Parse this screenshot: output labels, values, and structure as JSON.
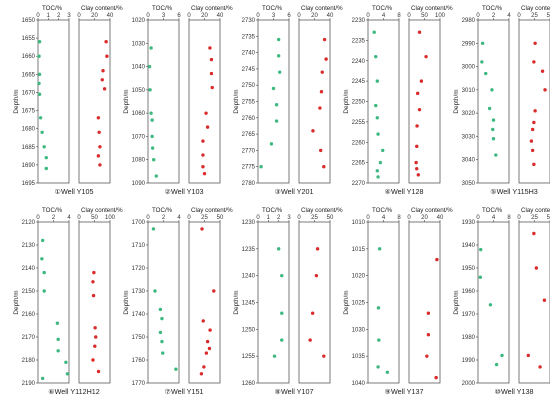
{
  "chart_data": [
    {
      "type": "scatter",
      "caption": "①Well Y105",
      "ylabel": "Depth/m",
      "ylim": [
        1650,
        1695
      ],
      "yticks": [
        1650,
        1655,
        1660,
        1665,
        1670,
        1675,
        1680,
        1685,
        1690,
        1695
      ],
      "reverse_y": true,
      "toc": {
        "label": "TOC/%",
        "xlim": [
          0,
          3
        ],
        "xticks": [
          0,
          1,
          2,
          3
        ],
        "points": [
          [
            0.15,
            1656
          ],
          [
            0.1,
            1660
          ],
          [
            0.15,
            1665
          ],
          [
            0.1,
            1667.5
          ],
          [
            0.15,
            1670.5
          ],
          [
            0.25,
            1677
          ],
          [
            0.4,
            1681
          ],
          [
            0.6,
            1685
          ],
          [
            0.8,
            1688
          ],
          [
            0.8,
            1691
          ]
        ]
      },
      "clay": {
        "label": "Clay content/%",
        "xlim": [
          0,
          40
        ],
        "xticks": [
          0,
          20,
          40
        ],
        "points": [
          [
            35,
            1656
          ],
          [
            36,
            1660
          ],
          [
            31,
            1664
          ],
          [
            30,
            1666.5
          ],
          [
            33,
            1669
          ],
          [
            25,
            1677
          ],
          [
            26,
            1681
          ],
          [
            27,
            1685
          ],
          [
            25,
            1687.5
          ],
          [
            27,
            1690
          ]
        ]
      }
    },
    {
      "type": "scatter",
      "caption": "②Well Y103",
      "ylabel": "Depth/m",
      "ylim": [
        1020,
        1090
      ],
      "yticks": [
        1020,
        1030,
        1040,
        1050,
        1060,
        1070,
        1080,
        1090
      ],
      "reverse_y": true,
      "toc": {
        "label": "TOC/%",
        "xlim": [
          0,
          6
        ],
        "xticks": [
          0,
          3,
          6
        ],
        "points": [
          [
            0.6,
            1032
          ],
          [
            0.3,
            1040
          ],
          [
            0.4,
            1050
          ],
          [
            0.6,
            1060
          ],
          [
            0.8,
            1063
          ],
          [
            0.8,
            1070
          ],
          [
            0.9,
            1075
          ],
          [
            1.1,
            1080
          ],
          [
            1.6,
            1087
          ]
        ]
      },
      "clay": {
        "label": "Clay content/%",
        "xlim": [
          0,
          40
        ],
        "xticks": [
          0,
          20,
          40
        ],
        "points": [
          [
            27,
            1032
          ],
          [
            29,
            1037
          ],
          [
            29,
            1043
          ],
          [
            30,
            1049
          ],
          [
            22,
            1060
          ],
          [
            24,
            1066
          ],
          [
            18,
            1072
          ],
          [
            18,
            1078
          ],
          [
            18,
            1083
          ],
          [
            20,
            1086
          ]
        ]
      }
    },
    {
      "type": "scatter",
      "caption": "③Well Y201",
      "ylabel": "Depth/m",
      "ylim": [
        2730,
        2780
      ],
      "yticks": [
        2730,
        2735,
        2740,
        2745,
        2750,
        2755,
        2760,
        2765,
        2770,
        2775,
        2780
      ],
      "reverse_y": true,
      "toc": {
        "label": "TOC/%",
        "xlim": [
          0,
          6
        ],
        "xticks": [
          0,
          3,
          6
        ],
        "points": [
          [
            4,
            2736
          ],
          [
            4,
            2741
          ],
          [
            4.2,
            2746
          ],
          [
            3,
            2751
          ],
          [
            3.6,
            2756
          ],
          [
            3.6,
            2761
          ],
          [
            2.6,
            2768
          ],
          [
            0.6,
            2775
          ]
        ]
      },
      "clay": {
        "label": "Clay content/%",
        "xlim": [
          0,
          40
        ],
        "xticks": [
          0,
          20,
          40
        ],
        "points": [
          [
            33,
            2736
          ],
          [
            35,
            2742
          ],
          [
            30,
            2746
          ],
          [
            29,
            2752
          ],
          [
            27,
            2757
          ],
          [
            18,
            2764
          ],
          [
            28,
            2770
          ],
          [
            32,
            2775
          ]
        ]
      }
    },
    {
      "type": "scatter",
      "caption": "④Well Y128",
      "ylabel": "Depth/m",
      "ylim": [
        2230,
        2270
      ],
      "yticks": [
        2230,
        2235,
        2240,
        2245,
        2250,
        2255,
        2260,
        2265,
        2270
      ],
      "reverse_y": true,
      "toc": {
        "label": "TOC/%",
        "xlim": [
          0,
          8
        ],
        "xticks": [
          0,
          4,
          8
        ],
        "points": [
          [
            1.6,
            2233
          ],
          [
            2,
            2239
          ],
          [
            2.4,
            2245
          ],
          [
            2,
            2251
          ],
          [
            2.4,
            2254
          ],
          [
            2.6,
            2258
          ],
          [
            3.8,
            2262
          ],
          [
            3.2,
            2265
          ],
          [
            2.4,
            2267
          ],
          [
            2.6,
            2268.5
          ]
        ]
      },
      "clay": {
        "label": "Clay content/%",
        "xlim": [
          0,
          100
        ],
        "xticks": [
          0,
          50,
          100
        ],
        "points": [
          [
            34,
            2233
          ],
          [
            55,
            2239
          ],
          [
            40,
            2245
          ],
          [
            28,
            2248
          ],
          [
            34,
            2252
          ],
          [
            26,
            2256
          ],
          [
            25,
            2261
          ],
          [
            23,
            2265
          ],
          [
            25,
            2266.5
          ],
          [
            30,
            2268
          ]
        ]
      }
    },
    {
      "type": "scatter",
      "caption": "⑤Well Y115H3",
      "ylabel": "Depth/m",
      "ylim": [
        2980,
        3050
      ],
      "yticks": [
        2980,
        2990,
        3000,
        3010,
        3020,
        3030,
        3040,
        3050
      ],
      "reverse_y": true,
      "toc": {
        "label": "TOC/%",
        "xlim": [
          0,
          4
        ],
        "xticks": [
          0,
          2,
          4
        ],
        "points": [
          [
            0.6,
            2990
          ],
          [
            0.5,
            2998
          ],
          [
            1,
            3003
          ],
          [
            1.8,
            3010
          ],
          [
            1.5,
            3018
          ],
          [
            2,
            3023
          ],
          [
            1.9,
            3027
          ],
          [
            2,
            3031
          ],
          [
            2.3,
            3038
          ]
        ]
      },
      "clay": {
        "label": "Clay content/%",
        "xlim": [
          0,
          50
        ],
        "xticks": [
          0,
          25,
          50
        ],
        "points": [
          [
            26,
            2990
          ],
          [
            24,
            2998
          ],
          [
            38,
            3002
          ],
          [
            42,
            3010
          ],
          [
            26,
            3019
          ],
          [
            24,
            3024
          ],
          [
            22,
            3027
          ],
          [
            20,
            3032
          ],
          [
            22,
            3036
          ],
          [
            24,
            3042
          ]
        ]
      }
    },
    {
      "type": "scatter",
      "caption": "⑥Well Y112H12",
      "ylabel": "Depth/m",
      "ylim": [
        2120,
        2190
      ],
      "yticks": [
        2120,
        2130,
        2140,
        2150,
        2160,
        2170,
        2180,
        2190
      ],
      "reverse_y": true,
      "toc": {
        "label": "TOC/%",
        "xlim": [
          0,
          4
        ],
        "xticks": [
          0,
          2,
          4
        ],
        "points": [
          [
            0.6,
            2128
          ],
          [
            0.5,
            2136
          ],
          [
            0.8,
            2142
          ],
          [
            0.8,
            2150
          ],
          [
            2.5,
            2164
          ],
          [
            2.6,
            2171
          ],
          [
            2.6,
            2176
          ],
          [
            3.6,
            2181
          ],
          [
            3.8,
            2186
          ],
          [
            0.6,
            2188
          ]
        ]
      },
      "clay": {
        "label": "Clay content/%",
        "xlim": [
          0,
          100
        ],
        "xticks": [
          0,
          50,
          100
        ],
        "points": [
          [
            48,
            2142
          ],
          [
            45,
            2146
          ],
          [
            47,
            2152
          ],
          [
            52,
            2166
          ],
          [
            54,
            2170
          ],
          [
            51,
            2174
          ],
          [
            45,
            2180
          ],
          [
            63,
            2185
          ]
        ]
      }
    },
    {
      "type": "scatter",
      "caption": "⑦Well Y151",
      "ylabel": "Depth/m",
      "ylim": [
        1700,
        1770
      ],
      "yticks": [
        1700,
        1710,
        1720,
        1730,
        1740,
        1750,
        1760,
        1770
      ],
      "reverse_y": true,
      "toc": {
        "label": "TOC/%",
        "xlim": [
          0,
          4
        ],
        "xticks": [
          0,
          2,
          4
        ],
        "points": [
          [
            0.7,
            1703
          ],
          [
            0.9,
            1730
          ],
          [
            1.6,
            1738
          ],
          [
            1.8,
            1742
          ],
          [
            1.6,
            1748
          ],
          [
            1.8,
            1752
          ],
          [
            1.9,
            1757
          ],
          [
            3.6,
            1764
          ]
        ]
      },
      "clay": {
        "label": "Clay content/%",
        "xlim": [
          0,
          50
        ],
        "xticks": [
          0,
          25,
          50
        ],
        "points": [
          [
            21,
            1703
          ],
          [
            40,
            1730
          ],
          [
            23,
            1743
          ],
          [
            34,
            1747
          ],
          [
            30,
            1752
          ],
          [
            33,
            1755
          ],
          [
            28,
            1757
          ],
          [
            24,
            1763
          ],
          [
            20,
            1766
          ]
        ]
      }
    },
    {
      "type": "scatter",
      "caption": "⑧Well Y107",
      "ylabel": "Depth/m",
      "ylim": [
        1230,
        1260
      ],
      "yticks": [
        1230,
        1235,
        1240,
        1245,
        1250,
        1255,
        1260
      ],
      "reverse_y": true,
      "toc": {
        "label": "TOC/%",
        "xlim": [
          0,
          3
        ],
        "xticks": [
          0,
          1,
          2,
          3
        ],
        "points": [
          [
            2,
            1235
          ],
          [
            2.3,
            1240
          ],
          [
            2.3,
            1247
          ],
          [
            2.3,
            1252
          ],
          [
            1.6,
            1255
          ]
        ]
      },
      "clay": {
        "label": "Clay content/%",
        "xlim": [
          0,
          50
        ],
        "xticks": [
          0,
          25,
          50
        ],
        "points": [
          [
            30,
            1235
          ],
          [
            28,
            1240
          ],
          [
            22,
            1247
          ],
          [
            18,
            1252
          ],
          [
            40,
            1255
          ]
        ]
      }
    },
    {
      "type": "scatter",
      "caption": "⑨Well Y137",
      "ylabel": "Depth/m",
      "ylim": [
        1010,
        1040
      ],
      "yticks": [
        1010,
        1015,
        1020,
        1025,
        1030,
        1035,
        1040
      ],
      "reverse_y": true,
      "toc": {
        "label": "TOC/%",
        "xlim": [
          0,
          8
        ],
        "xticks": [
          0,
          4,
          8
        ],
        "points": [
          [
            3,
            1015
          ],
          [
            2.7,
            1026
          ],
          [
            2.8,
            1032
          ],
          [
            2.6,
            1037
          ],
          [
            5,
            1038
          ]
        ]
      },
      "clay": {
        "label": "Clay content/%",
        "xlim": [
          0,
          40
        ],
        "xticks": [
          0,
          20,
          40
        ],
        "points": [
          [
            36,
            1017
          ],
          [
            25,
            1027
          ],
          [
            25,
            1031
          ],
          [
            23,
            1035
          ],
          [
            35,
            1039
          ]
        ]
      }
    },
    {
      "type": "scatter",
      "caption": "⑩Well Y138",
      "ylabel": "Depth/m",
      "ylim": [
        1930,
        2000
      ],
      "yticks": [
        1930,
        1940,
        1950,
        1960,
        1970,
        1980,
        1990,
        2000
      ],
      "reverse_y": true,
      "toc": {
        "label": "TOC/%",
        "xlim": [
          0,
          8
        ],
        "xticks": [
          0,
          4,
          8
        ],
        "points": [
          [
            0.7,
            1942
          ],
          [
            0.6,
            1954
          ],
          [
            3.2,
            1966
          ],
          [
            6.2,
            1988
          ],
          [
            4.8,
            1992
          ]
        ]
      },
      "clay": {
        "label": "Clay content/%",
        "xlim": [
          0,
          50
        ],
        "xticks": [
          0,
          25,
          50
        ],
        "points": [
          [
            24,
            1935
          ],
          [
            28,
            1950
          ],
          [
            41,
            1964
          ],
          [
            15,
            1988
          ],
          [
            34,
            1993
          ]
        ]
      }
    }
  ],
  "colors": {
    "toc_point": "#3db87f",
    "clay_point": "#d92b2b",
    "axis": "#444444",
    "tick_text": "#333333"
  }
}
